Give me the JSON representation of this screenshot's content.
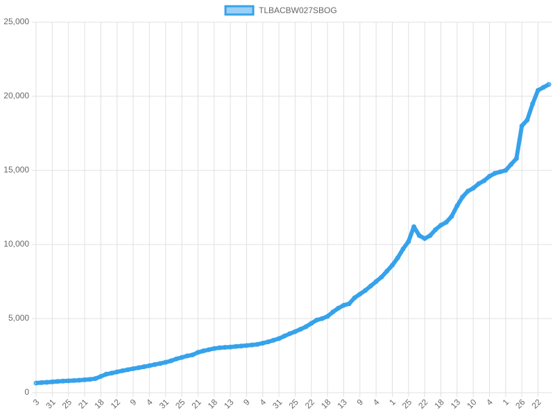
{
  "chart_data": {
    "type": "line",
    "categories": [
      "3",
      null,
      null,
      "31",
      null,
      null,
      "25",
      null,
      null,
      "21",
      null,
      null,
      "18",
      null,
      null,
      "12",
      null,
      null,
      "9",
      null,
      null,
      "4",
      null,
      null,
      "31",
      null,
      null,
      "25",
      null,
      null,
      "21",
      null,
      null,
      "18",
      null,
      null,
      "13",
      null,
      null,
      "9",
      null,
      null,
      "4",
      null,
      null,
      "31",
      null,
      null,
      "25",
      null,
      null,
      "22",
      null,
      null,
      "18",
      null,
      null,
      "13",
      null,
      null,
      "9",
      null,
      null,
      "4",
      null,
      null,
      "1",
      null,
      null,
      "25",
      null,
      null,
      "22",
      null,
      null,
      "18",
      null,
      null,
      "13",
      null,
      null,
      "10",
      null,
      null,
      "4",
      null,
      null,
      "1",
      null,
      null,
      "26",
      null,
      null,
      "22",
      null,
      null
    ],
    "series": [
      {
        "name": "TLBACBW027SBOG",
        "color": "#36a2eb",
        "values": [
          650,
          680,
          700,
          730,
          760,
          780,
          800,
          820,
          840,
          870,
          900,
          950,
          1100,
          1250,
          1320,
          1400,
          1480,
          1550,
          1620,
          1680,
          1750,
          1820,
          1900,
          1970,
          2050,
          2150,
          2280,
          2380,
          2480,
          2550,
          2720,
          2820,
          2900,
          2980,
          3030,
          3060,
          3080,
          3120,
          3150,
          3180,
          3220,
          3260,
          3340,
          3430,
          3540,
          3650,
          3820,
          3980,
          4120,
          4280,
          4450,
          4680,
          4900,
          5000,
          5150,
          5450,
          5700,
          5900,
          6000,
          6400,
          6650,
          6900,
          7200,
          7500,
          7800,
          8200,
          8600,
          9100,
          9700,
          10200,
          11200,
          10600,
          10400,
          10600,
          11000,
          11300,
          11500,
          11900,
          12600,
          13200,
          13600,
          13800,
          14100,
          14300,
          14600,
          14800,
          14900,
          15000,
          15400,
          15800,
          18000,
          18400,
          19500,
          20400,
          20600,
          20800
        ]
      }
    ],
    "ylim": [
      0,
      25000
    ],
    "yticks": [
      0,
      {
        "value": 5000,
        "label": "5,000"
      },
      {
        "value": 10000,
        "label": "10,000"
      },
      {
        "value": 15000,
        "label": "15,000"
      },
      {
        "value": 20000,
        "label": "20,000"
      },
      {
        "value": 25000,
        "label": "25,000"
      }
    ],
    "grid": true,
    "legend": "top"
  }
}
